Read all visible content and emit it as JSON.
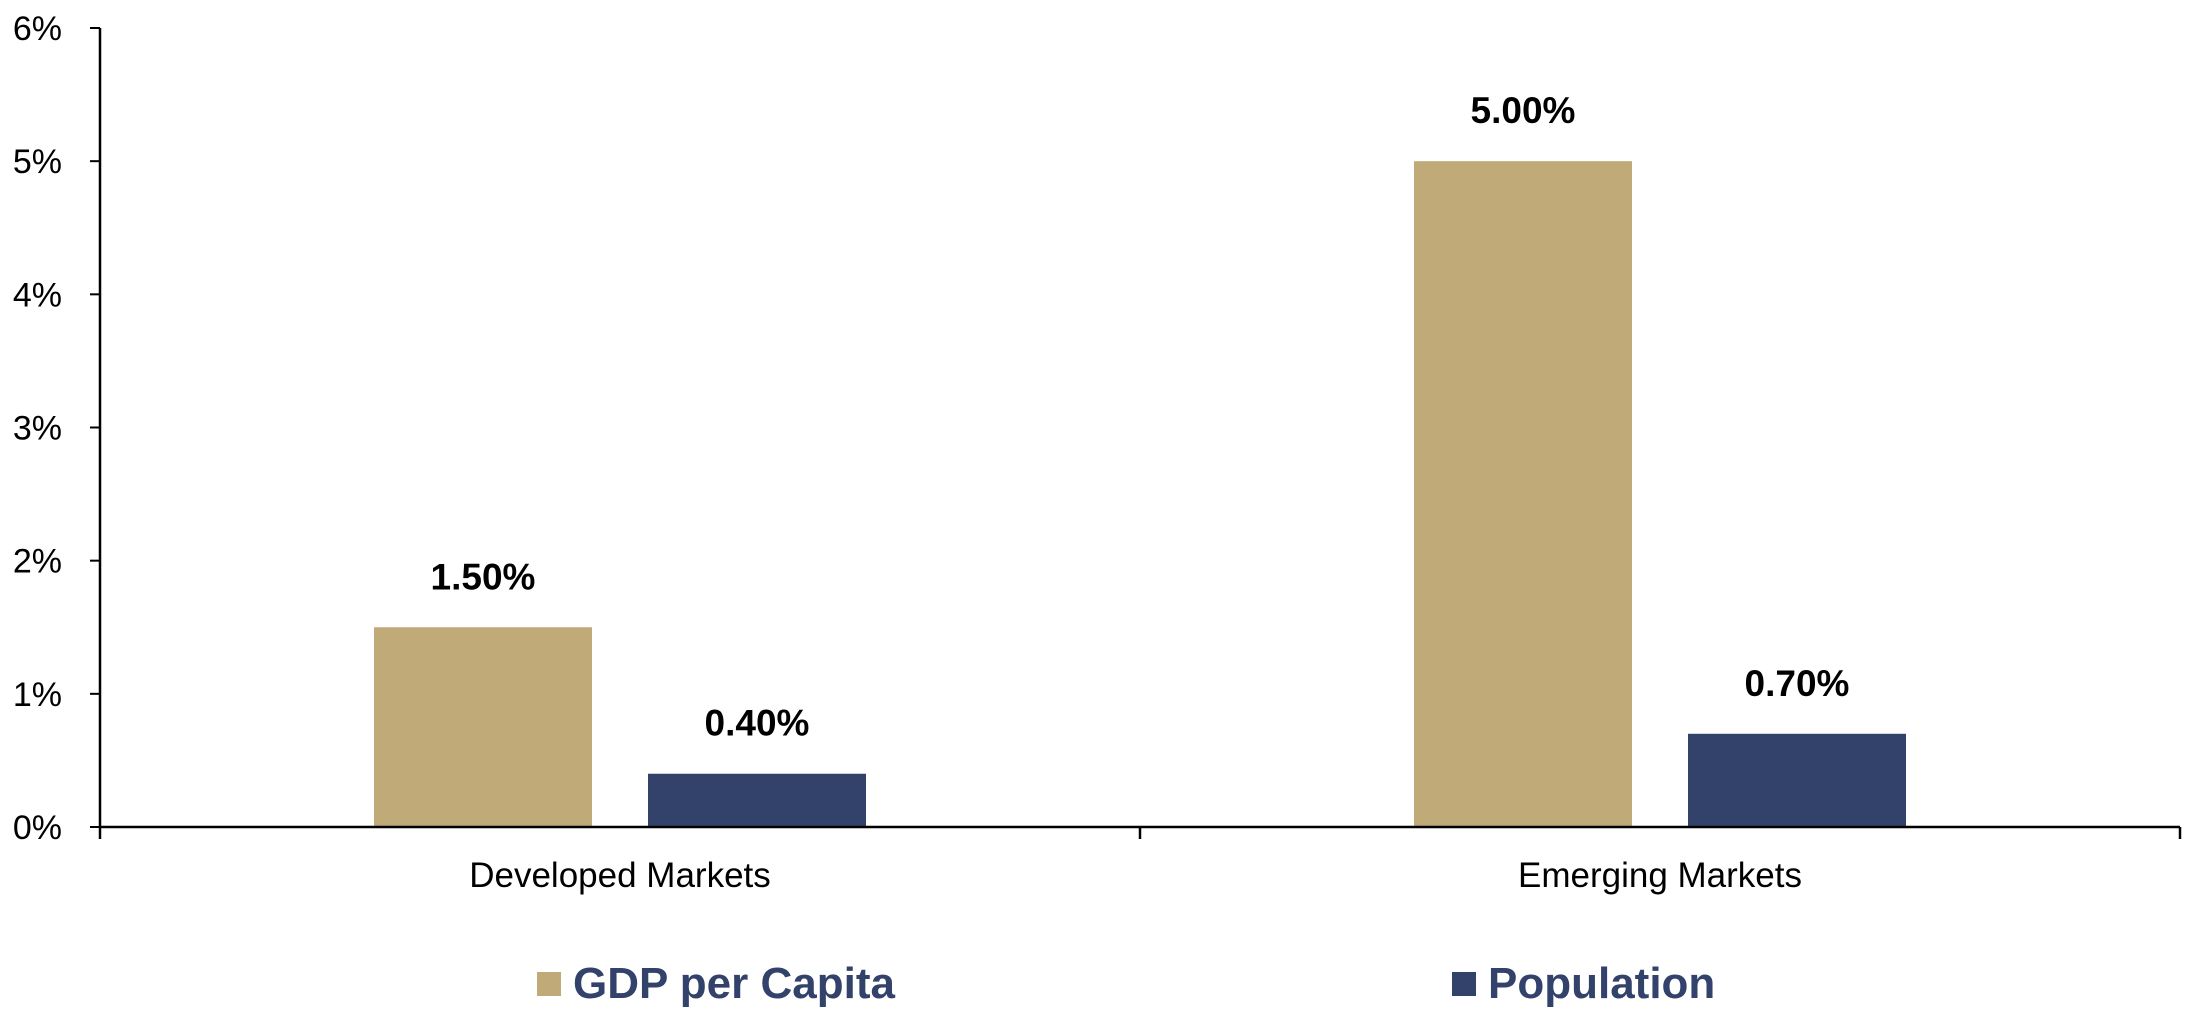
{
  "chart_data": {
    "type": "bar",
    "categories": [
      "Developed Markets",
      "Emerging Markets"
    ],
    "series": [
      {
        "name": "GDP per Capita",
        "values": [
          1.5,
          5.0
        ],
        "labels": [
          "1.50%",
          "5.00%"
        ],
        "color": "#C0AA78"
      },
      {
        "name": "Population",
        "values": [
          0.4,
          0.7
        ],
        "labels": [
          "0.40%",
          "0.70%"
        ],
        "color": "#33426A"
      }
    ],
    "ylim": [
      0,
      6
    ],
    "yticks": [
      0,
      1,
      2,
      3,
      4,
      5,
      6
    ],
    "ytick_labels": [
      "0%",
      "1%",
      "2%",
      "3%",
      "4%",
      "5%",
      "6%"
    ],
    "title": "",
    "xlabel": "",
    "ylabel": "",
    "grid": false,
    "legend_position": "bottom-center",
    "legend_text_color": "#33426A"
  }
}
